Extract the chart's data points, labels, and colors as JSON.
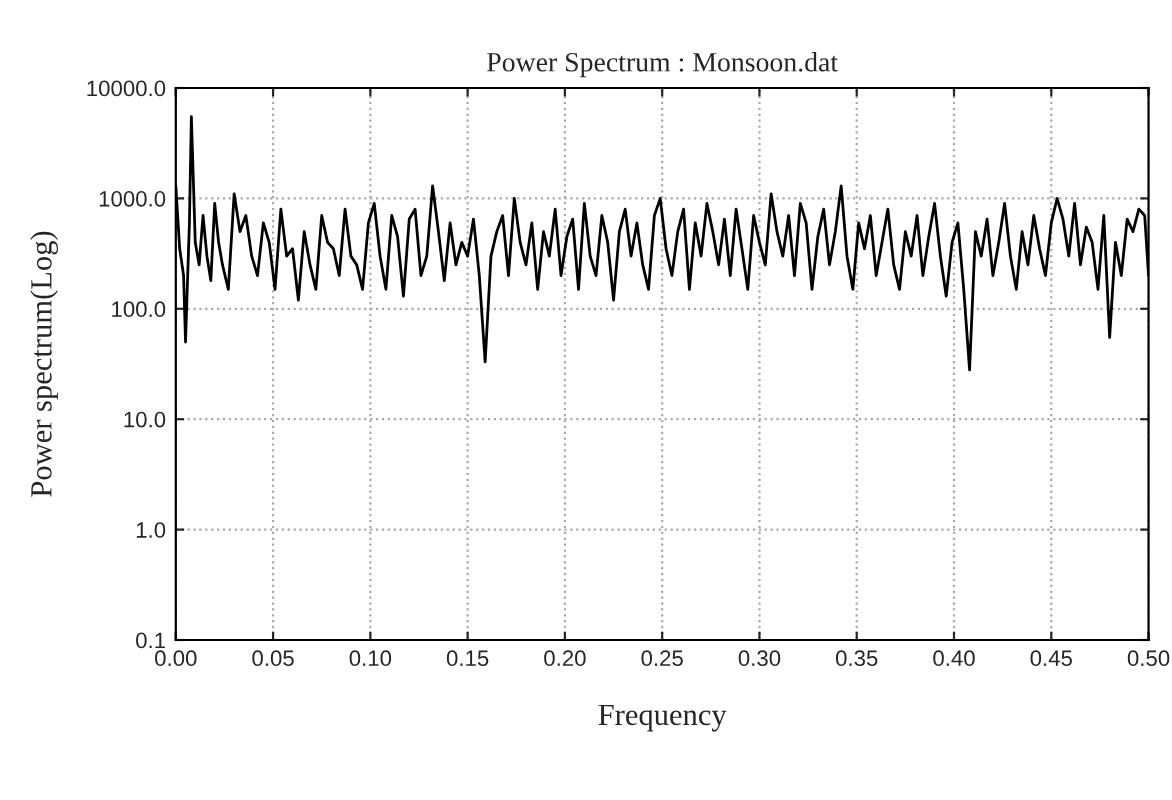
{
  "chart_data": {
    "type": "line",
    "title": "Power Spectrum : Monsoon.dat",
    "xlabel": "Frequency",
    "ylabel": "Power spectrum(Log)",
    "log": "y",
    "grid": true,
    "xlim": [
      0,
      0.5
    ],
    "ylim": [
      0.1,
      10000
    ],
    "xticks": [
      {
        "value": 0,
        "label": "0.00"
      },
      {
        "value": 0.05,
        "label": "0.05"
      },
      {
        "value": 0.1,
        "label": "0.10"
      },
      {
        "value": 0.15,
        "label": "0.15"
      },
      {
        "value": 0.2,
        "label": "0.20"
      },
      {
        "value": 0.25,
        "label": "0.25"
      },
      {
        "value": 0.3,
        "label": "0.30"
      },
      {
        "value": 0.35,
        "label": "0.35"
      },
      {
        "value": 0.4,
        "label": "0.40"
      },
      {
        "value": 0.45,
        "label": "0.45"
      },
      {
        "value": 0.5,
        "label": "0.50"
      }
    ],
    "yticks": [
      {
        "value": 0.1,
        "label": "0.1"
      },
      {
        "value": 1,
        "label": "1.0"
      },
      {
        "value": 10,
        "label": "10.0"
      },
      {
        "value": 100,
        "label": "100.0"
      },
      {
        "value": 1000,
        "label": "1000.0"
      },
      {
        "value": 10000,
        "label": "10000.0"
      }
    ],
    "series": [
      {
        "color": "#000000",
        "x": [
          0,
          0.002,
          0.004,
          0.005,
          0.007,
          0.008,
          0.01,
          0.012,
          0.014,
          0.016,
          0.018,
          0.02,
          0.022,
          0.024,
          0.027,
          0.03,
          0.033,
          0.036,
          0.039,
          0.042,
          0.045,
          0.048,
          0.051,
          0.054,
          0.057,
          0.06,
          0.063,
          0.066,
          0.069,
          0.072,
          0.075,
          0.078,
          0.081,
          0.084,
          0.087,
          0.09,
          0.093,
          0.096,
          0.099,
          0.102,
          0.105,
          0.108,
          0.111,
          0.114,
          0.117,
          0.12,
          0.123,
          0.126,
          0.129,
          0.132,
          0.135,
          0.138,
          0.141,
          0.144,
          0.147,
          0.15,
          0.153,
          0.156,
          0.159,
          0.162,
          0.165,
          0.168,
          0.171,
          0.174,
          0.177,
          0.18,
          0.183,
          0.186,
          0.189,
          0.192,
          0.195,
          0.198,
          0.201,
          0.204,
          0.207,
          0.21,
          0.213,
          0.216,
          0.219,
          0.222,
          0.225,
          0.228,
          0.231,
          0.234,
          0.237,
          0.24,
          0.243,
          0.246,
          0.249,
          0.252,
          0.255,
          0.258,
          0.261,
          0.264,
          0.267,
          0.27,
          0.273,
          0.276,
          0.279,
          0.282,
          0.285,
          0.288,
          0.291,
          0.294,
          0.297,
          0.3,
          0.303,
          0.306,
          0.309,
          0.312,
          0.315,
          0.318,
          0.321,
          0.324,
          0.327,
          0.33,
          0.333,
          0.336,
          0.339,
          0.342,
          0.345,
          0.348,
          0.351,
          0.354,
          0.357,
          0.36,
          0.363,
          0.366,
          0.369,
          0.372,
          0.375,
          0.378,
          0.381,
          0.384,
          0.387,
          0.39,
          0.393,
          0.396,
          0.399,
          0.402,
          0.405,
          0.408,
          0.411,
          0.414,
          0.417,
          0.42,
          0.423,
          0.426,
          0.429,
          0.432,
          0.435,
          0.438,
          0.441,
          0.444,
          0.447,
          0.45,
          0.453,
          0.456,
          0.459,
          0.462,
          0.465,
          0.468,
          0.471,
          0.474,
          0.477,
          0.48,
          0.483,
          0.486,
          0.489,
          0.492,
          0.495,
          0.498,
          0.5
        ],
        "values": [
          1300,
          350,
          200,
          50,
          600,
          5500,
          400,
          250,
          700,
          300,
          180,
          900,
          400,
          250,
          150,
          1100,
          500,
          700,
          300,
          200,
          600,
          400,
          150,
          800,
          300,
          350,
          120,
          500,
          250,
          150,
          700,
          400,
          350,
          200,
          800,
          300,
          250,
          150,
          600,
          900,
          300,
          150,
          700,
          450,
          130,
          650,
          800,
          200,
          300,
          1300,
          500,
          180,
          600,
          250,
          400,
          300,
          650,
          200,
          33,
          300,
          500,
          700,
          200,
          1000,
          400,
          250,
          600,
          150,
          500,
          300,
          800,
          200,
          450,
          650,
          150,
          900,
          300,
          200,
          700,
          400,
          120,
          500,
          800,
          300,
          600,
          250,
          150,
          700,
          1000,
          350,
          200,
          500,
          800,
          150,
          600,
          300,
          900,
          500,
          250,
          650,
          200,
          800,
          350,
          150,
          700,
          400,
          250,
          1100,
          500,
          300,
          700,
          200,
          900,
          600,
          150,
          450,
          800,
          250,
          500,
          1300,
          300,
          150,
          600,
          350,
          700,
          200,
          400,
          800,
          250,
          150,
          500,
          300,
          700,
          200,
          450,
          900,
          300,
          130,
          400,
          600,
          150,
          28,
          500,
          300,
          650,
          200,
          400,
          900,
          300,
          150,
          500,
          250,
          700,
          350,
          200,
          600,
          1000,
          650,
          300,
          900,
          250,
          550,
          400,
          150,
          700,
          55,
          400,
          200,
          650,
          500,
          800,
          700,
          200
        ]
      }
    ]
  }
}
